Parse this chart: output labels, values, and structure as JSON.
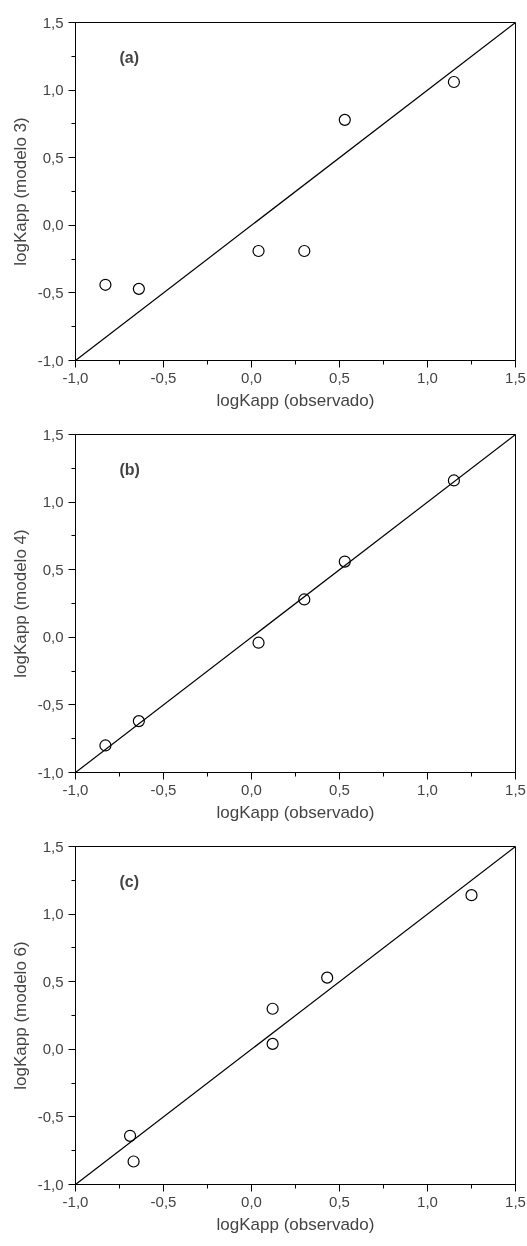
{
  "chart_data": [
    {
      "type": "scatter",
      "annotations": [
        "(a)"
      ],
      "xlabel": "logKapp (observado)",
      "ylabel": "logKapp (modelo 3)",
      "xlim": [
        -1,
        1.5
      ],
      "ylim": [
        -1,
        1.5
      ],
      "xticks": [
        {
          "value": -1,
          "label": "-1,0"
        },
        {
          "value": -0.75,
          "label": null
        },
        {
          "value": -0.5,
          "label": "-0,5"
        },
        {
          "value": -0.25,
          "label": null
        },
        {
          "value": 0,
          "label": "0,0"
        },
        {
          "value": 0.25,
          "label": null
        },
        {
          "value": 0.5,
          "label": "0,5"
        },
        {
          "value": 0.75,
          "label": null
        },
        {
          "value": 1,
          "label": "1,0"
        },
        {
          "value": 1.25,
          "label": null
        },
        {
          "value": 1.5,
          "label": "1,5"
        }
      ],
      "yticks": [
        {
          "value": -1,
          "label": "-1,0"
        },
        {
          "value": -0.75,
          "label": null
        },
        {
          "value": -0.5,
          "label": "-0,5"
        },
        {
          "value": -0.25,
          "label": null
        },
        {
          "value": 0,
          "label": "0,0"
        },
        {
          "value": 0.25,
          "label": null
        },
        {
          "value": 0.5,
          "label": "0,5"
        },
        {
          "value": 0.75,
          "label": null
        },
        {
          "value": 1,
          "label": "1,0"
        },
        {
          "value": 1.25,
          "label": null
        },
        {
          "value": 1.5,
          "label": "1,5"
        }
      ],
      "grid": false,
      "series": [
        {
          "marker": "circle",
          "color": "#000000",
          "x": [
            -0.83,
            -0.64,
            0.04,
            0.3,
            0.53,
            1.15
          ],
          "values": [
            -0.44,
            -0.47,
            -0.19,
            -0.19,
            0.78,
            1.06
          ]
        },
        {
          "type": "line",
          "color": "#000000",
          "x": [
            -1,
            1.5
          ],
          "values": [
            -1,
            1.5
          ]
        }
      ]
    },
    {
      "type": "scatter",
      "annotations": [
        "(b)"
      ],
      "xlabel": "logKapp (observado)",
      "ylabel": "logKapp (modelo 4)",
      "xlim": [
        -1,
        1.5
      ],
      "ylim": [
        -1,
        1.5
      ],
      "xticks": [
        {
          "value": -1,
          "label": "-1,0"
        },
        {
          "value": -0.75,
          "label": null
        },
        {
          "value": -0.5,
          "label": "-0,5"
        },
        {
          "value": -0.25,
          "label": null
        },
        {
          "value": 0,
          "label": "0,0"
        },
        {
          "value": 0.25,
          "label": null
        },
        {
          "value": 0.5,
          "label": "0,5"
        },
        {
          "value": 0.75,
          "label": null
        },
        {
          "value": 1,
          "label": "1,0"
        },
        {
          "value": 1.25,
          "label": null
        },
        {
          "value": 1.5,
          "label": "1,5"
        }
      ],
      "yticks": [
        {
          "value": -1,
          "label": "-1,0"
        },
        {
          "value": -0.75,
          "label": null
        },
        {
          "value": -0.5,
          "label": "-0,5"
        },
        {
          "value": -0.25,
          "label": null
        },
        {
          "value": 0,
          "label": "0,0"
        },
        {
          "value": 0.25,
          "label": null
        },
        {
          "value": 0.5,
          "label": "0,5"
        },
        {
          "value": 0.75,
          "label": null
        },
        {
          "value": 1,
          "label": "1,0"
        },
        {
          "value": 1.25,
          "label": null
        },
        {
          "value": 1.5,
          "label": "1,5"
        }
      ],
      "grid": false,
      "series": [
        {
          "marker": "circle",
          "color": "#000000",
          "x": [
            -0.83,
            -0.64,
            0.04,
            0.3,
            0.53,
            1.15
          ],
          "values": [
            -0.8,
            -0.62,
            -0.04,
            0.28,
            0.56,
            1.16
          ]
        },
        {
          "type": "line",
          "color": "#000000",
          "x": [
            -1,
            1.5
          ],
          "values": [
            -1,
            1.5
          ]
        }
      ]
    },
    {
      "type": "scatter",
      "annotations": [
        "(c)"
      ],
      "xlabel": "logKapp (observado)",
      "ylabel": "logKapp (modelo 6)",
      "xlim": [
        -1,
        1.5
      ],
      "ylim": [
        -1,
        1.5
      ],
      "xticks": [
        {
          "value": -1,
          "label": "-1,0"
        },
        {
          "value": -0.75,
          "label": null
        },
        {
          "value": -0.5,
          "label": "-0,5"
        },
        {
          "value": -0.25,
          "label": null
        },
        {
          "value": 0,
          "label": "0,0"
        },
        {
          "value": 0.25,
          "label": null
        },
        {
          "value": 0.5,
          "label": "0,5"
        },
        {
          "value": 0.75,
          "label": null
        },
        {
          "value": 1,
          "label": "1,0"
        },
        {
          "value": 1.25,
          "label": null
        },
        {
          "value": 1.5,
          "label": "1,5"
        }
      ],
      "yticks": [
        {
          "value": -1,
          "label": "-1,0"
        },
        {
          "value": -0.75,
          "label": null
        },
        {
          "value": -0.5,
          "label": "-0,5"
        },
        {
          "value": -0.25,
          "label": null
        },
        {
          "value": 0,
          "label": "0,0"
        },
        {
          "value": 0.25,
          "label": null
        },
        {
          "value": 0.5,
          "label": "0,5"
        },
        {
          "value": 0.75,
          "label": null
        },
        {
          "value": 1,
          "label": "1,0"
        },
        {
          "value": 1.25,
          "label": null
        },
        {
          "value": 1.5,
          "label": "1,5"
        }
      ],
      "grid": false,
      "series": [
        {
          "marker": "circle",
          "color": "#000000",
          "x": [
            -0.69,
            -0.67,
            0.12,
            0.12,
            0.43,
            1.25
          ],
          "values": [
            -0.64,
            -0.83,
            0.3,
            0.04,
            0.53,
            1.14
          ]
        },
        {
          "type": "line",
          "color": "#000000",
          "x": [
            -1,
            1.5
          ],
          "values": [
            -1,
            1.5
          ]
        }
      ]
    }
  ]
}
